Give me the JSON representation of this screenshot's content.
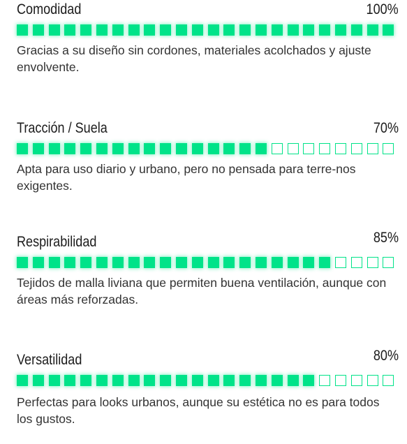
{
  "colors": {
    "accent": "#00e389",
    "text": "#222222"
  },
  "segments_total": 24,
  "ratings": [
    {
      "label": "Comodidad",
      "percent_text": "100%",
      "filled_segments": 24,
      "description": "Gracias a su diseño sin cordones, materiales acolchados y ajuste envolvente."
    },
    {
      "label": "Tracción / Suela",
      "percent_text": "70%",
      "filled_segments": 16,
      "description": "Apta para uso diario y urbano, pero no pensada para terre-nos exigentes."
    },
    {
      "label": "Respirabilidad",
      "percent_text": "85%",
      "filled_segments": 20,
      "description": "Tejidos de malla liviana que permiten buena ventilación, aunque con áreas más reforzadas."
    },
    {
      "label": "Versatilidad",
      "percent_text": "80%",
      "filled_segments": 19,
      "description": "Perfectas para looks urbanos, aunque su estética no es para todos los gustos."
    }
  ]
}
